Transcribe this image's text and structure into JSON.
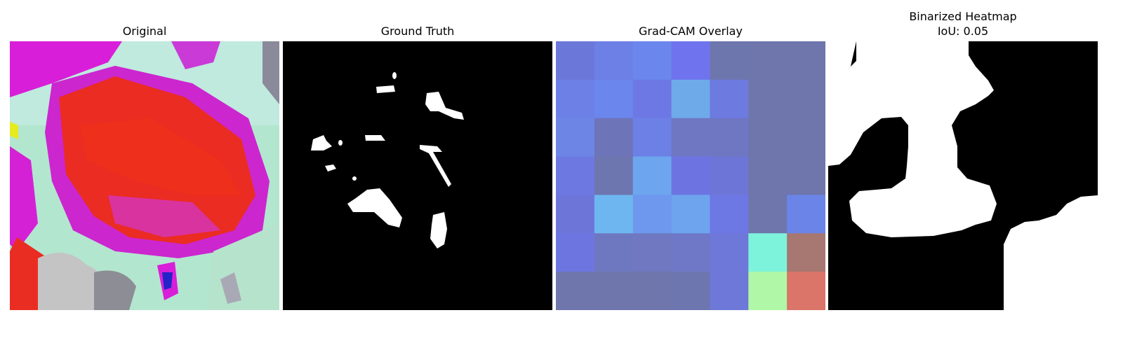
{
  "panels": [
    {
      "title": "Original"
    },
    {
      "title": "Ground Truth"
    },
    {
      "title": "Grad-CAM Overlay"
    },
    {
      "title_line1": "Binarized Heatmap",
      "title_line2": "IoU: 0.05"
    }
  ],
  "gradcam_grid": [
    [
      "#6b78d9",
      "#6d80e6",
      "#6b86ec",
      "#6f74ee",
      "#6e76ae",
      "#6e76ab",
      "#6e76ab"
    ],
    [
      "#6d80e6",
      "#6b86ec",
      "#6d78e5",
      "#6eaaea",
      "#6d7ae0",
      "#6e76ab",
      "#6e76ab"
    ],
    [
      "#6d86e6",
      "#6e74b8",
      "#6d80e6",
      "#6f76c2",
      "#6f76c2",
      "#6e76ab",
      "#6e76ab"
    ],
    [
      "#6d78e0",
      "#6e76b0",
      "#6da6ee",
      "#6d74e2",
      "#6d76d6",
      "#6e76ab",
      "#6e76ab"
    ],
    [
      "#6d76d8",
      "#6eb6f0",
      "#6d98ee",
      "#6ea4ee",
      "#6d78e4",
      "#6e76ab",
      "#6b84e8"
    ],
    [
      "#6d76e0",
      "#6e78c0",
      "#6f78c0",
      "#6f78c6",
      "#6d78d8",
      "#7ef3db",
      "#a77771"
    ],
    [
      "#6e76ab",
      "#6e76ab",
      "#6e76ab",
      "#6e76b0",
      "#6d78d8",
      "#b0f7a8",
      "#db7469"
    ]
  ]
}
